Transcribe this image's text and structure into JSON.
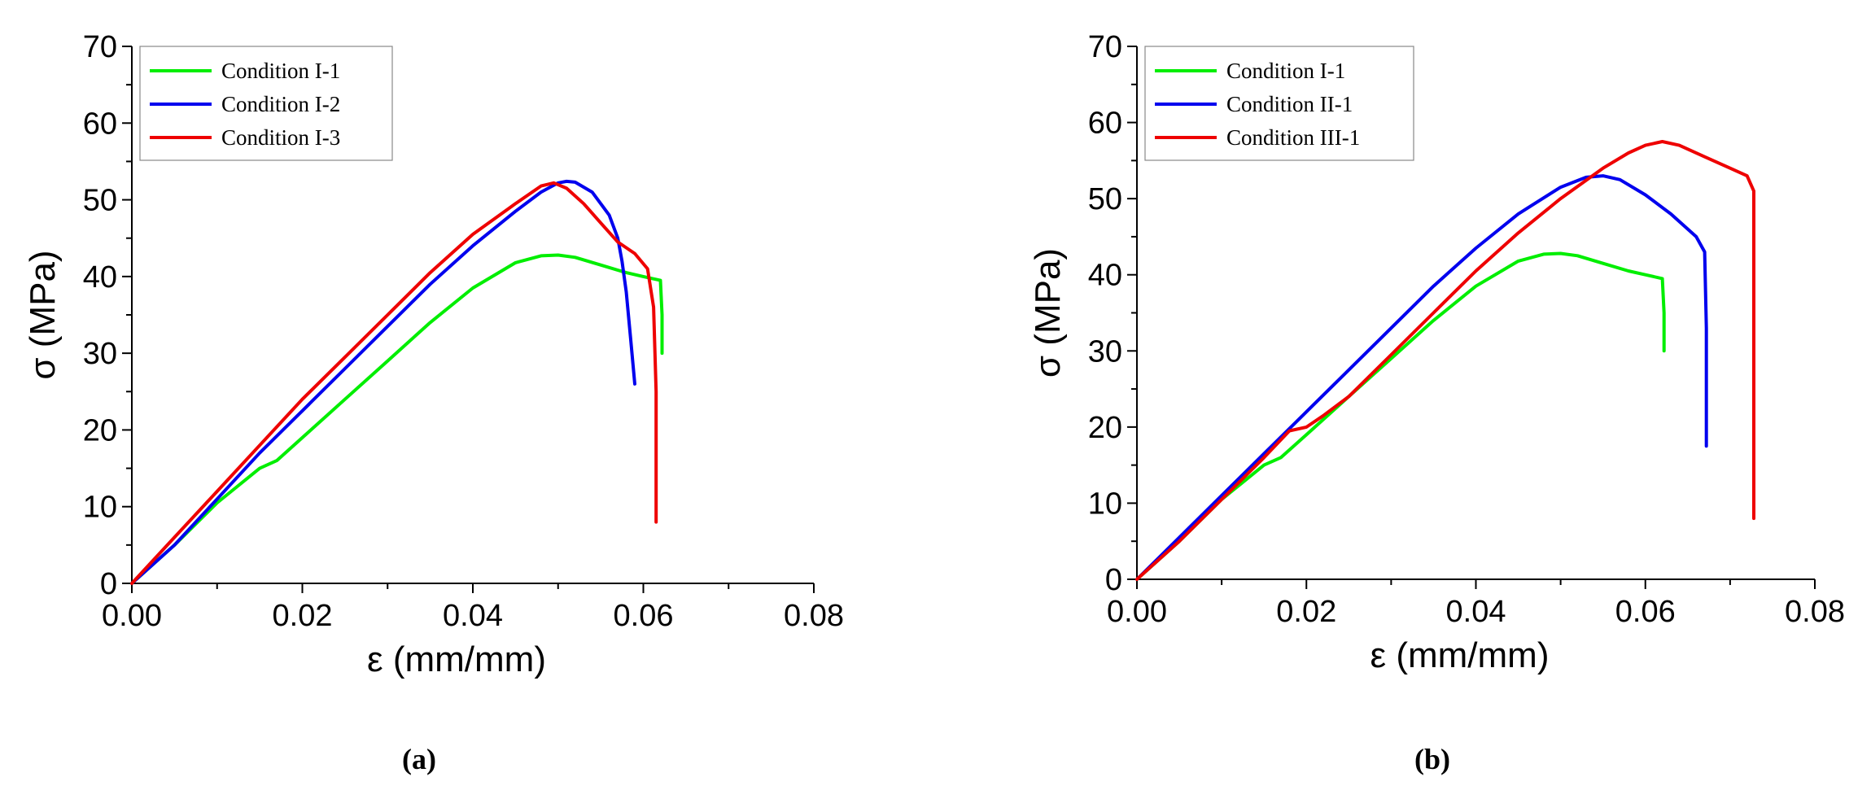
{
  "captions": [
    "(a)",
    "(b)"
  ],
  "chart_data": [
    {
      "type": "line",
      "xlabel": "ε (mm/mm)",
      "ylabel": "σ (MPa)",
      "xlim": [
        0,
        0.08
      ],
      "ylim": [
        0,
        70
      ],
      "xticks": [
        0,
        0.02,
        0.04,
        0.06,
        0.08
      ],
      "yticks": [
        0,
        10,
        20,
        30,
        40,
        50,
        60,
        70
      ],
      "xtick_labels": [
        "0.00",
        "0.02",
        "0.04",
        "0.06",
        "0.08"
      ],
      "ytick_labels": [
        "0",
        "10",
        "20",
        "30",
        "40",
        "50",
        "60",
        "70"
      ],
      "legend_position": "top-left",
      "series": [
        {
          "name": "Condition I-1",
          "color": "#00ee00",
          "x": [
            0,
            0.005,
            0.01,
            0.015,
            0.017,
            0.02,
            0.025,
            0.03,
            0.035,
            0.04,
            0.045,
            0.048,
            0.05,
            0.052,
            0.055,
            0.058,
            0.06,
            0.062,
            0.0622,
            0.0622
          ],
          "y": [
            0,
            5,
            10.5,
            15,
            16,
            19,
            24,
            29,
            34,
            38.5,
            41.8,
            42.7,
            42.8,
            42.5,
            41.5,
            40.5,
            40,
            39.5,
            35,
            30
          ]
        },
        {
          "name": "Condition I-2",
          "color": "#0000ee",
          "x": [
            0,
            0.005,
            0.01,
            0.015,
            0.02,
            0.025,
            0.03,
            0.035,
            0.04,
            0.045,
            0.048,
            0.05,
            0.051,
            0.052,
            0.054,
            0.056,
            0.057,
            0.0575,
            0.058,
            0.0585,
            0.059
          ],
          "y": [
            0,
            5,
            11,
            17,
            22.5,
            28,
            33.5,
            39,
            44,
            48.5,
            51,
            52.2,
            52.4,
            52.3,
            51,
            48,
            45,
            42,
            38,
            32,
            26
          ]
        },
        {
          "name": "Condition I-3",
          "color": "#ee0000",
          "x": [
            0,
            0.005,
            0.01,
            0.015,
            0.02,
            0.025,
            0.03,
            0.035,
            0.04,
            0.045,
            0.048,
            0.0495,
            0.051,
            0.053,
            0.055,
            0.057,
            0.059,
            0.0605,
            0.0612,
            0.0615,
            0.0615,
            0.0615
          ],
          "y": [
            0,
            6,
            12,
            18,
            24,
            29.5,
            35,
            40.5,
            45.5,
            49.5,
            51.8,
            52.2,
            51.5,
            49.5,
            47,
            44.5,
            43,
            41,
            36,
            25,
            15,
            8
          ]
        }
      ]
    },
    {
      "type": "line",
      "xlabel": "ε (mm/mm)",
      "ylabel": "σ (MPa)",
      "xlim": [
        0,
        0.08
      ],
      "ylim": [
        0,
        70
      ],
      "xticks": [
        0,
        0.02,
        0.04,
        0.06,
        0.08
      ],
      "yticks": [
        0,
        10,
        20,
        30,
        40,
        50,
        60,
        70
      ],
      "xtick_labels": [
        "0.00",
        "0.02",
        "0.04",
        "0.06",
        "0.08"
      ],
      "ytick_labels": [
        "0",
        "10",
        "20",
        "30",
        "40",
        "50",
        "60",
        "70"
      ],
      "legend_position": "top-left",
      "series": [
        {
          "name": "Condition I-1",
          "color": "#00ee00",
          "x": [
            0,
            0.005,
            0.01,
            0.015,
            0.017,
            0.02,
            0.025,
            0.03,
            0.035,
            0.04,
            0.045,
            0.048,
            0.05,
            0.052,
            0.055,
            0.058,
            0.06,
            0.062,
            0.0622,
            0.0622
          ],
          "y": [
            0,
            5,
            10.5,
            15,
            16,
            19,
            24,
            29,
            34,
            38.5,
            41.8,
            42.7,
            42.8,
            42.5,
            41.5,
            40.5,
            40,
            39.5,
            35,
            30
          ]
        },
        {
          "name": "Condition II-1",
          "color": "#0000ee",
          "x": [
            0,
            0.005,
            0.01,
            0.015,
            0.02,
            0.025,
            0.03,
            0.035,
            0.04,
            0.045,
            0.05,
            0.053,
            0.055,
            0.057,
            0.06,
            0.063,
            0.066,
            0.067,
            0.0672,
            0.0672,
            0.0672
          ],
          "y": [
            0,
            5.5,
            11,
            16.5,
            22,
            27.5,
            33,
            38.5,
            43.5,
            48,
            51.5,
            52.8,
            53,
            52.5,
            50.5,
            48,
            45,
            43,
            33,
            25,
            17.5
          ]
        },
        {
          "name": "Condition III-1",
          "color": "#ee0000",
          "x": [
            0,
            0.005,
            0.01,
            0.015,
            0.018,
            0.02,
            0.022,
            0.025,
            0.03,
            0.035,
            0.04,
            0.045,
            0.05,
            0.055,
            0.058,
            0.06,
            0.062,
            0.064,
            0.067,
            0.07,
            0.072,
            0.0728,
            0.0728,
            0.0728
          ],
          "y": [
            0,
            5,
            10.5,
            16,
            19.5,
            20,
            21.5,
            24,
            29.5,
            35,
            40.5,
            45.5,
            50,
            54,
            56,
            57,
            57.5,
            57,
            55.5,
            54,
            53,
            51,
            30,
            8
          ]
        }
      ]
    }
  ]
}
